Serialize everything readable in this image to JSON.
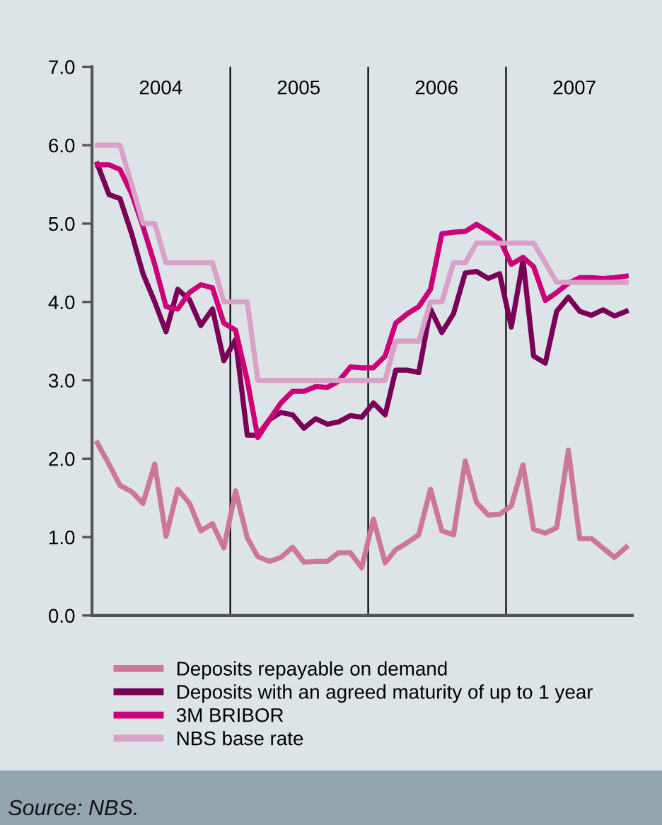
{
  "chart_data": {
    "type": "line",
    "x": [
      "2004-01-15",
      "2004-02-15",
      "2004-03-15",
      "2004-04-15",
      "2004-05-15",
      "2004-06-15",
      "2004-07-15",
      "2004-08-15",
      "2004-09-15",
      "2004-10-15",
      "2004-11-15",
      "2004-12-15",
      "2005-01-15",
      "2005-02-15",
      "2005-03-15",
      "2005-04-15",
      "2005-05-15",
      "2005-06-15",
      "2005-07-15",
      "2005-08-15",
      "2005-09-15",
      "2005-10-15",
      "2005-11-15",
      "2005-12-15",
      "2006-01-15",
      "2006-02-15",
      "2006-03-15",
      "2006-04-15",
      "2006-05-15",
      "2006-06-15",
      "2006-07-15",
      "2006-08-15",
      "2006-09-15",
      "2006-10-15",
      "2006-11-15",
      "2006-12-15",
      "2007-01-15",
      "2007-02-15",
      "2007-03-15",
      "2007-04-15",
      "2007-05-15",
      "2007-06-15",
      "2007-07-15",
      "2007-08-15",
      "2007-09-15",
      "2007-10-15",
      "2007-11-15"
    ],
    "series": [
      {
        "name": "Deposits repayable on demand",
        "color": "#cc7799",
        "values": [
          2.2,
          1.93,
          1.66,
          1.58,
          1.43,
          1.93,
          1.01,
          1.61,
          1.43,
          1.08,
          1.17,
          0.86,
          1.59,
          0.99,
          0.75,
          0.69,
          0.74,
          0.87,
          0.68,
          0.69,
          0.69,
          0.8,
          0.8,
          0.61,
          1.23,
          0.67,
          0.84,
          0.93,
          1.03,
          1.61,
          1.08,
          1.03,
          1.97,
          1.44,
          1.28,
          1.29,
          1.4,
          1.92,
          1.1,
          1.05,
          1.12,
          2.11,
          0.98,
          0.98,
          0.86,
          0.74,
          0.87
        ]
      },
      {
        "name": "Deposits with an agreed maturity of up to 1 year",
        "color": "#7a0057",
        "values": [
          5.76,
          5.37,
          5.32,
          4.87,
          4.36,
          4.0,
          3.62,
          4.16,
          4.03,
          3.7,
          3.91,
          3.25,
          3.52,
          2.3,
          2.3,
          2.5,
          2.59,
          2.56,
          2.39,
          2.51,
          2.44,
          2.47,
          2.55,
          2.53,
          2.71,
          2.56,
          3.13,
          3.13,
          3.1,
          3.91,
          3.61,
          3.85,
          4.37,
          4.39,
          4.3,
          4.36,
          3.68,
          4.53,
          3.31,
          3.22,
          3.88,
          4.06,
          3.88,
          3.83,
          3.9,
          3.82,
          3.88
        ]
      },
      {
        "name": "3M BRIBOR",
        "color": "#cc0077",
        "values": [
          5.75,
          5.75,
          5.69,
          5.38,
          4.96,
          4.48,
          3.94,
          3.91,
          4.12,
          4.22,
          4.18,
          3.73,
          3.64,
          3.0,
          2.27,
          2.5,
          2.71,
          2.86,
          2.86,
          2.92,
          2.91,
          2.99,
          3.17,
          3.16,
          3.16,
          3.31,
          3.73,
          3.85,
          3.94,
          4.16,
          4.87,
          4.89,
          4.9,
          4.99,
          4.9,
          4.8,
          4.48,
          4.57,
          4.45,
          4.02,
          4.12,
          4.24,
          4.31,
          4.31,
          4.3,
          4.31,
          4.33
        ]
      },
      {
        "name": "NBS base rate",
        "color": "#d9a0c8",
        "values": [
          6.0,
          6.0,
          6.0,
          5.5,
          5.0,
          5.0,
          4.5,
          4.5,
          4.5,
          4.5,
          4.5,
          4.0,
          4.0,
          4.0,
          3.0,
          3.0,
          3.0,
          3.0,
          3.0,
          3.0,
          3.0,
          3.0,
          3.0,
          3.0,
          3.0,
          3.0,
          3.5,
          3.5,
          3.5,
          4.0,
          4.0,
          4.5,
          4.5,
          4.75,
          4.75,
          4.75,
          4.75,
          4.75,
          4.75,
          4.5,
          4.25,
          4.25,
          4.25,
          4.25,
          4.25,
          4.25,
          4.25
        ]
      }
    ],
    "xlim": [
      "2004-01-01",
      "2007-12-01"
    ],
    "xticks": [
      {
        "value": "2004-07-01",
        "label": "2004"
      },
      {
        "value": "2005-07-01",
        "label": "2005"
      },
      {
        "value": "2006-07-01",
        "label": "2006"
      },
      {
        "value": "2007-07-01",
        "label": "2007"
      }
    ],
    "ylim": [
      0,
      7
    ],
    "yticks": [
      {
        "value": 0,
        "label": "0.0"
      },
      {
        "value": 1,
        "label": "1.0"
      },
      {
        "value": 2,
        "label": "2.0"
      },
      {
        "value": 3,
        "label": "3.0"
      },
      {
        "value": 4,
        "label": "4.0"
      },
      {
        "value": 5,
        "label": "5.0"
      },
      {
        "value": 6,
        "label": "6.0"
      },
      {
        "value": 7,
        "label": "7.0"
      }
    ],
    "ref_lines": [
      {
        "axis": "x",
        "value": "2005-01-01",
        "color": "#000000"
      },
      {
        "axis": "x",
        "value": "2006-01-01",
        "color": "#000000"
      },
      {
        "axis": "x",
        "value": "2007-01-01",
        "color": "#000000"
      }
    ],
    "grid": false,
    "legend": "bottom",
    "marker": "none",
    "line_style": "solid",
    "annotations": [
      "Source: NBS."
    ]
  }
}
